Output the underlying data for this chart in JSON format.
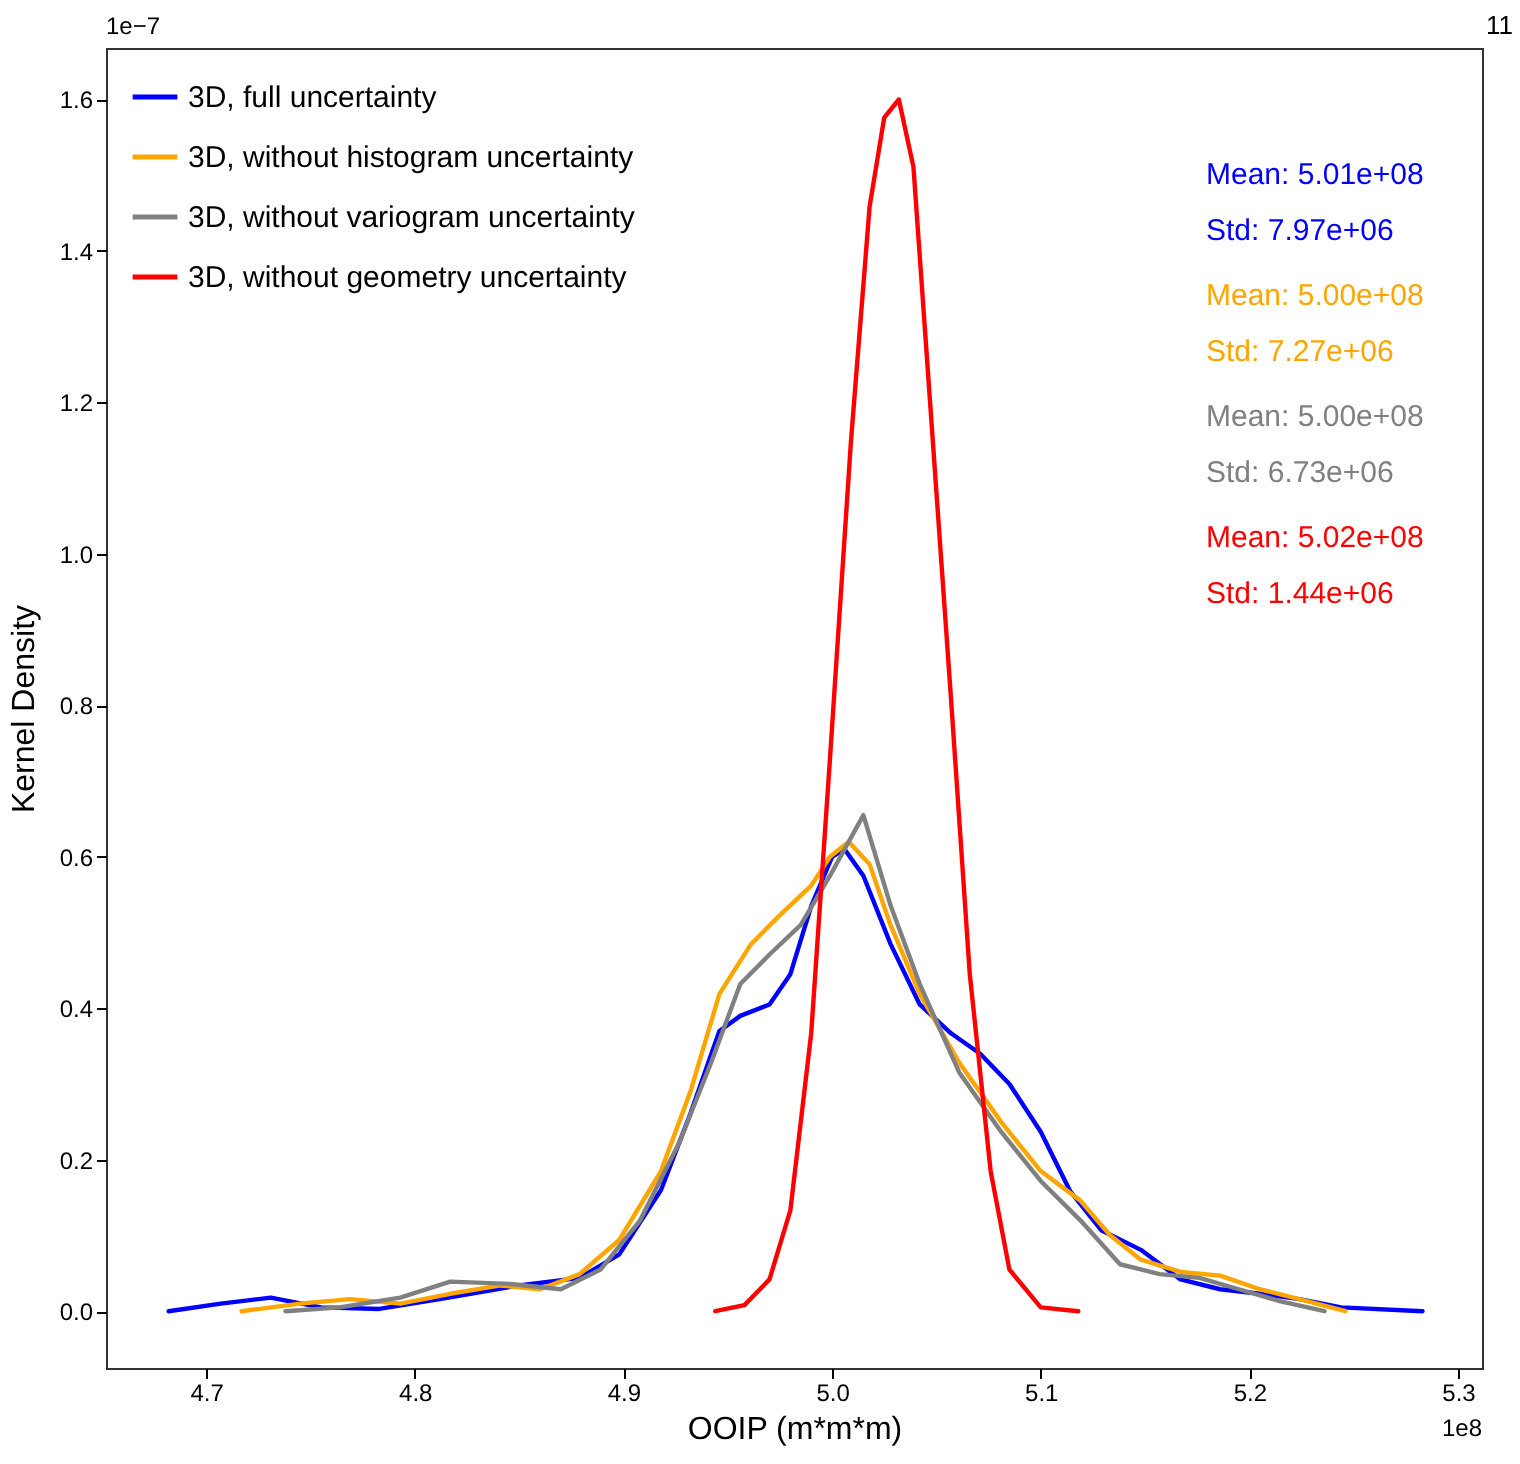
{
  "chart_data": {
    "type": "line",
    "xlabel": "OOIP (m*m*m)",
    "ylabel": "Kernel Density",
    "xlim": [
      4.652,
      5.3115
    ],
    "ylim": [
      -0.075,
      1.668
    ],
    "xticks": [
      4.7,
      4.8,
      4.9,
      {
        "value": 5,
        "label": "5.0"
      },
      5.1,
      5.2,
      5.3
    ],
    "yticks": [
      {
        "value": 0,
        "label": "0.0"
      },
      0.2,
      0.4,
      0.6,
      0.8,
      {
        "value": 1,
        "label": "1.0"
      },
      1.2,
      1.4,
      1.6
    ],
    "grid": false,
    "legend": "top left",
    "line_style": "solid",
    "marker": "none",
    "annotations": [
      "Mean: 5.01e+08",
      "Std: 7.97e+06",
      "Mean: 5.00e+08",
      "Std: 7.27e+06",
      "Mean: 5.00e+08",
      "Std: 6.73e+06",
      "Mean: 5.02e+08",
      "Std: 1.44e+06",
      "1e−7",
      "1e8",
      "11"
    ],
    "series": [
      {
        "name": "3D, full uncertainty",
        "color": "#0000ff",
        "x": [
          4.682,
          4.707,
          4.731,
          4.755,
          4.783,
          4.812,
          4.85,
          4.879,
          4.898,
          4.918,
          4.932,
          4.946,
          4.956,
          4.97,
          4.98,
          4.99,
          5.0,
          5.006,
          5.015,
          5.028,
          5.042,
          5.057,
          5.071,
          5.085,
          5.1,
          5.114,
          5.129,
          5.148,
          5.167,
          5.186,
          5.205,
          5.224,
          5.244,
          5.283
        ],
        "values": [
          0.0,
          0.01,
          0.018,
          0.005,
          0.003,
          0.016,
          0.034,
          0.044,
          0.075,
          0.16,
          0.26,
          0.37,
          0.39,
          0.405,
          0.445,
          0.535,
          0.6,
          0.61,
          0.575,
          0.485,
          0.405,
          0.367,
          0.34,
          0.3,
          0.237,
          0.159,
          0.107,
          0.081,
          0.042,
          0.029,
          0.023,
          0.016,
          0.005,
          0.0
        ]
      },
      {
        "name": "3D, without histogram uncertainty",
        "color": "#ffa500",
        "x": [
          4.717,
          4.745,
          4.769,
          4.793,
          4.817,
          4.841,
          4.86,
          4.879,
          4.898,
          4.918,
          4.932,
          4.946,
          4.961,
          4.975,
          4.99,
          4.999,
          5.008,
          5.018,
          5.028,
          5.042,
          5.061,
          5.081,
          5.1,
          5.119,
          5.133,
          5.148,
          5.167,
          5.186,
          5.205,
          5.224,
          5.246
        ],
        "values": [
          0.0,
          0.01,
          0.016,
          0.01,
          0.023,
          0.034,
          0.029,
          0.049,
          0.094,
          0.185,
          0.289,
          0.419,
          0.484,
          0.523,
          0.562,
          0.6,
          0.62,
          0.59,
          0.51,
          0.419,
          0.328,
          0.25,
          0.185,
          0.146,
          0.101,
          0.068,
          0.052,
          0.047,
          0.029,
          0.016,
          0.0
        ]
      },
      {
        "name": "3D, without variogram uncertainty",
        "color": "#808080",
        "x": [
          4.738,
          4.764,
          4.793,
          4.817,
          4.846,
          4.87,
          4.889,
          4.908,
          4.927,
          4.942,
          4.956,
          4.97,
          4.985,
          4.999,
          5.015,
          5.028,
          5.042,
          5.061,
          5.081,
          5.1,
          5.119,
          5.138,
          5.157,
          5.176,
          5.195,
          5.215,
          5.236
        ],
        "values": [
          0.0,
          0.005,
          0.018,
          0.039,
          0.036,
          0.029,
          0.055,
          0.12,
          0.224,
          0.328,
          0.432,
          0.471,
          0.51,
          0.575,
          0.655,
          0.536,
          0.432,
          0.315,
          0.237,
          0.172,
          0.12,
          0.062,
          0.049,
          0.044,
          0.029,
          0.013,
          0.0
        ]
      },
      {
        "name": "3D, without geometry uncertainty",
        "color": "#ff0000",
        "x": [
          4.944,
          4.958,
          4.97,
          4.98,
          4.99,
          4.999,
          5.009,
          5.018,
          5.025,
          5.032,
          5.039,
          5.047,
          5.057,
          5.066,
          5.076,
          5.085,
          5.1,
          5.118
        ],
        "values": [
          0.0,
          0.008,
          0.042,
          0.133,
          0.367,
          0.73,
          1.147,
          1.459,
          1.576,
          1.6,
          1.511,
          1.199,
          0.809,
          0.445,
          0.185,
          0.055,
          0.005,
          0.0
        ]
      }
    ]
  }
}
